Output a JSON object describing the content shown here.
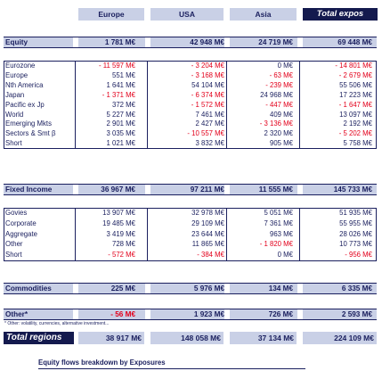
{
  "headers": [
    "Europe",
    "USA",
    "Asia",
    "Total expos"
  ],
  "equity": {
    "label": "Equity",
    "values": [
      "1 781 M€",
      "42 948 M€",
      "24 719 M€",
      "69 448 M€"
    ],
    "rows": [
      {
        "label": "Eurozone",
        "values": [
          "- 11 597 M€",
          "- 3 204 M€",
          "0 M€",
          "- 14 801 M€"
        ]
      },
      {
        "label": "Europe",
        "values": [
          "551 M€",
          "- 3 168 M€",
          "- 63 M€",
          "- 2 679 M€"
        ]
      },
      {
        "label": "Nth America",
        "values": [
          "1 641 M€",
          "54 104 M€",
          "- 239 M€",
          "55 506 M€"
        ]
      },
      {
        "label": "Japan",
        "values": [
          "- 1 371 M€",
          "- 6 374 M€",
          "24 968 M€",
          "17 223 M€"
        ]
      },
      {
        "label": "Pacific ex Jp",
        "values": [
          "372 M€",
          "- 1 572 M€",
          "- 447 M€",
          "- 1 647 M€"
        ]
      },
      {
        "label": "World",
        "values": [
          "5 227 M€",
          "7 461 M€",
          "409 M€",
          "13 097 M€"
        ]
      },
      {
        "label": "Emerging Mkts",
        "values": [
          "2 901 M€",
          "2 427 M€",
          "- 3 136 M€",
          "2 192 M€"
        ]
      },
      {
        "label": "Sectors & Smt β",
        "values": [
          "3 035 M€",
          "- 10 557 M€",
          "2 320 M€",
          "- 5 202 M€"
        ]
      },
      {
        "label": "Short",
        "values": [
          "1 021 M€",
          "3 832 M€",
          "905 M€",
          "5 758 M€"
        ]
      }
    ]
  },
  "fixed_income": {
    "label": "Fixed Income",
    "values": [
      "36 967 M€",
      "97 211 M€",
      "11 555 M€",
      "145 733 M€"
    ],
    "rows": [
      {
        "label": "Govies",
        "values": [
          "13 907 M€",
          "32 978 M€",
          "5 051 M€",
          "51 935 M€"
        ]
      },
      {
        "label": "Corporate",
        "values": [
          "19 485 M€",
          "29 109 M€",
          "7 361 M€",
          "55 955 M€"
        ]
      },
      {
        "label": "Aggregate",
        "values": [
          "3 419 M€",
          "23 644 M€",
          "963 M€",
          "28 026 M€"
        ]
      },
      {
        "label": "Other",
        "values": [
          "728 M€",
          "11 865 M€",
          "- 1 820 M€",
          "10 773 M€"
        ]
      },
      {
        "label": "Short",
        "values": [
          "- 572 M€",
          "- 384 M€",
          "0 M€",
          "- 956 M€"
        ]
      }
    ]
  },
  "commodities": {
    "label": "Commodities",
    "values": [
      "225 M€",
      "5 976 M€",
      "134 M€",
      "6 335 M€"
    ]
  },
  "other": {
    "label": "Other*",
    "values": [
      "- 56 M€",
      "1 923 M€",
      "726 M€",
      "2 593 M€"
    ],
    "note": "* Other: volatility, currencies, alternative investment..."
  },
  "total_regions": {
    "label": "Total regions",
    "values": [
      "38 917 M€",
      "148 058 M€",
      "37 134 M€",
      "224 109 M€"
    ]
  },
  "caption": "Equity flows breakdown by Exposures",
  "colors": {
    "navy": "#141a4e",
    "header_bg": "#c9d0e6",
    "negative": "#e3001b",
    "text": "#1a1f5e"
  }
}
